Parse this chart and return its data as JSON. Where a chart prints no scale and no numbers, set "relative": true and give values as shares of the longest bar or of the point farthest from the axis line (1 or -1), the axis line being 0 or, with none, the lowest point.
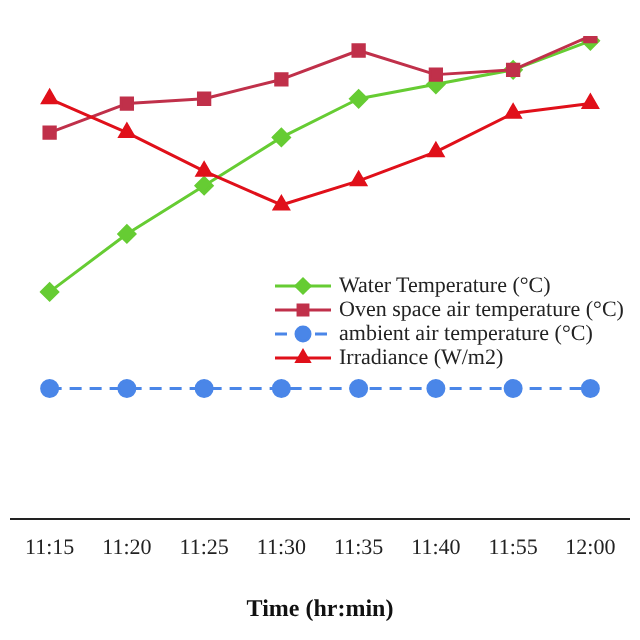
{
  "chart_data": {
    "type": "line",
    "relative": true,
    "xlabel": "Time (hr:min)",
    "categories": [
      "11:15",
      "11:20",
      "11:25",
      "11:30",
      "11:35",
      "11:40",
      "11:55",
      "12:00"
    ],
    "series": [
      {
        "name": "Water Temperature (°C)",
        "color": "#66cc33",
        "marker": "diamond",
        "values": [
          0.47,
          0.59,
          0.69,
          0.79,
          0.87,
          0.9,
          0.93,
          0.99
        ]
      },
      {
        "name": "Oven space air temperature (°C)",
        "color": "#c0304a",
        "marker": "square",
        "values": [
          0.8,
          0.86,
          0.87,
          0.91,
          0.97,
          0.92,
          0.93,
          1.0
        ]
      },
      {
        "name": "ambient air temperature (°C)",
        "color": "#4a86e8",
        "marker": "circle",
        "line_style": "dashed",
        "values": [
          0.27,
          0.27,
          0.27,
          0.27,
          0.27,
          0.27,
          0.27,
          0.27
        ]
      },
      {
        "name": "Irradiance (W/m2)",
        "color": "#e0101a",
        "marker": "triangle",
        "values": [
          0.87,
          0.8,
          0.72,
          0.65,
          0.7,
          0.76,
          0.84,
          0.86
        ]
      }
    ],
    "grid": false,
    "legend": "right"
  }
}
